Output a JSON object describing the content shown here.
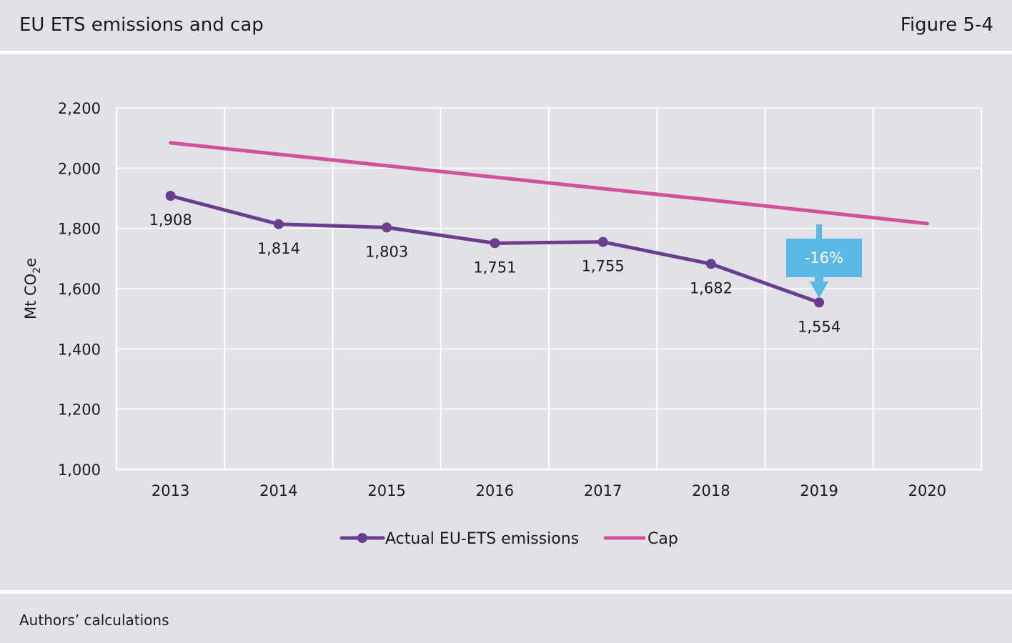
{
  "header": {
    "title": "EU ETS emissions and cap",
    "figure_label": "Figure 5-4"
  },
  "footer": {
    "source": "Authors’ calculations"
  },
  "annotation": {
    "text": "-16%",
    "color": "#5cb8e4"
  },
  "colors": {
    "actual": "#6a3d8f",
    "cap": "#d0529a",
    "grid": "#ffffff",
    "background": "#e1e2e7"
  },
  "chart_data": {
    "type": "line",
    "title": "EU ETS emissions and cap",
    "ylabel_main": "Mt CO",
    "ylabel_sub": "2",
    "ylabel_tail": "e",
    "categories": [
      "2013",
      "2014",
      "2015",
      "2016",
      "2017",
      "2018",
      "2019",
      "2020"
    ],
    "ylim": [
      1000,
      2200
    ],
    "yticks": [
      1000,
      1200,
      1400,
      1600,
      1800,
      2000,
      2200
    ],
    "ytick_labels": [
      "1,000",
      "1,200",
      "1,400",
      "1,600",
      "1,800",
      "2,000",
      "2,200"
    ],
    "grid": true,
    "legend_position": "bottom",
    "series": [
      {
        "name": "Actual EU-ETS emissions",
        "markers": true,
        "values": [
          1908,
          1814,
          1803,
          1751,
          1755,
          1682,
          1554,
          null
        ],
        "labels": [
          "1,908",
          "1,814",
          "1,803",
          "1,751",
          "1,755",
          "1,682",
          "1,554",
          ""
        ]
      },
      {
        "name": "Cap",
        "markers": false,
        "values": [
          2084,
          2046,
          2008,
          1970,
          1932,
          1894,
          1855,
          1816
        ]
      }
    ]
  }
}
